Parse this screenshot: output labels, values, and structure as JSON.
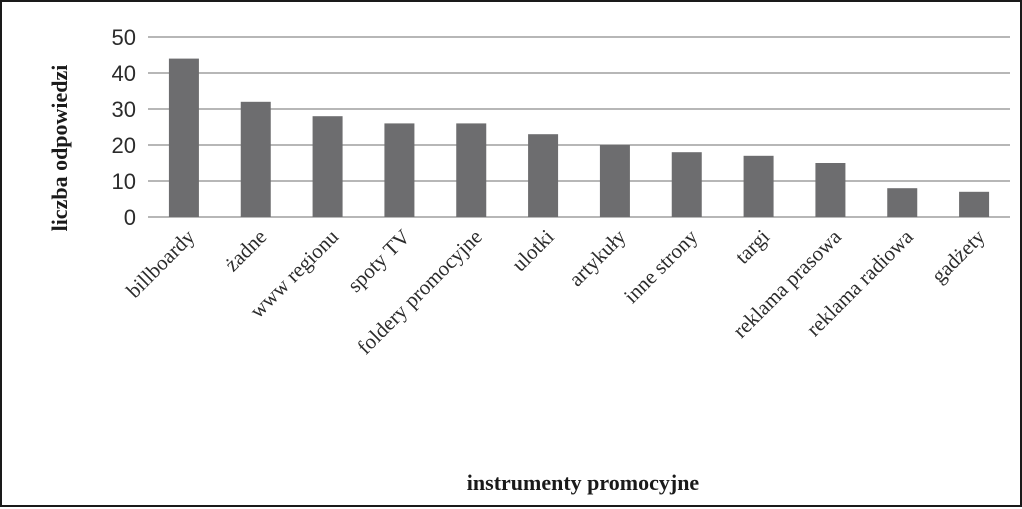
{
  "chart_data": {
    "type": "bar",
    "xlabel": "instrumenty promocyjne",
    "ylabel": "liczba odpowiedzi",
    "categories": [
      "billboardy",
      "żadne",
      "www regionu",
      "spoty TV",
      "foldery promocyjne",
      "ulotki",
      "artykuły",
      "inne strony",
      "targi",
      "reklama prasowa",
      "reklama radiowa",
      "gadżety"
    ],
    "values": [
      44,
      32,
      28,
      26,
      26,
      23,
      20,
      18,
      17,
      15,
      8,
      7
    ],
    "ylim": [
      0,
      50
    ],
    "yticks": [
      0,
      10,
      20,
      30,
      40,
      50
    ],
    "grid": true,
    "legend": "none",
    "colors": {
      "bar": "#6d6d6f",
      "grid": "#8c8c8c",
      "border": "#1a1a1a"
    }
  }
}
